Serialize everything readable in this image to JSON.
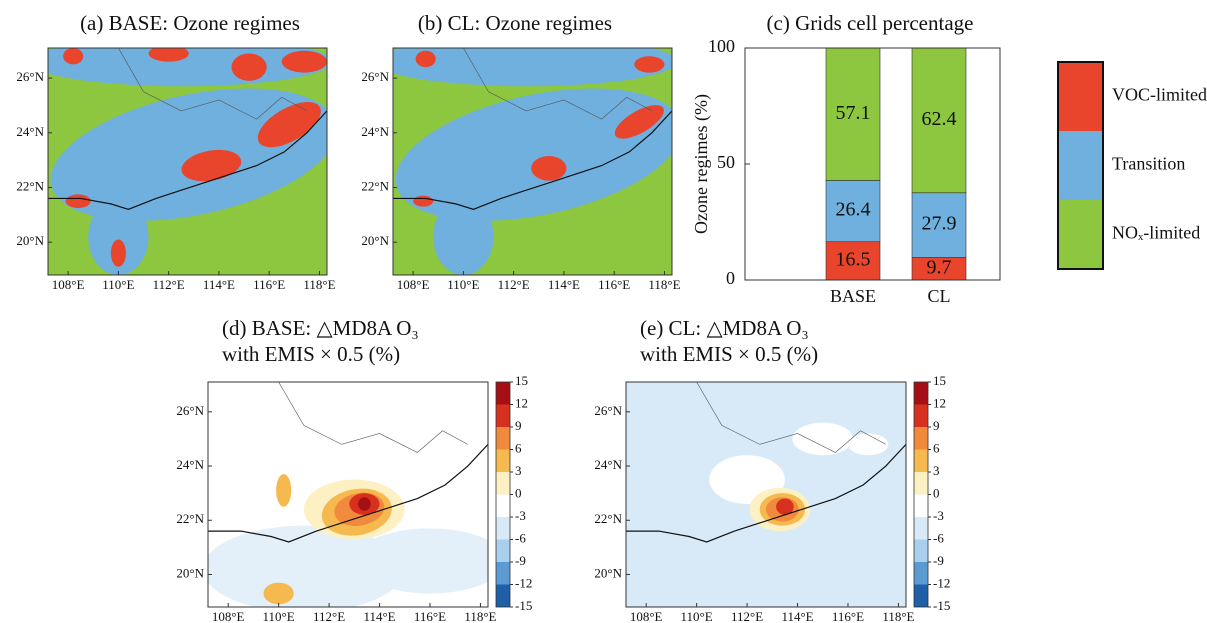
{
  "chart_data": [
    {
      "type": "map",
      "title": "(a) BASE: Ozone regimes",
      "xlim": [
        107.2,
        118.3
      ],
      "ylim": [
        18.8,
        27.1
      ],
      "xticks": [
        {
          "value": 108,
          "label": "108°E"
        },
        {
          "value": 110,
          "label": "110°E"
        },
        {
          "value": 112,
          "label": "112°E"
        },
        {
          "value": 114,
          "label": "114°E"
        },
        {
          "value": 116,
          "label": "116°E"
        },
        {
          "value": 118,
          "label": "118°E"
        }
      ],
      "yticks": [
        {
          "value": 20,
          "label": "20°N"
        },
        {
          "value": 22,
          "label": "22°N"
        },
        {
          "value": 24,
          "label": "24°N"
        },
        {
          "value": 26,
          "label": "26°N"
        }
      ]
    },
    {
      "type": "map",
      "title": "(b) CL: Ozone regimes",
      "xlim": [
        107.2,
        118.3
      ],
      "ylim": [
        18.8,
        27.1
      ],
      "xticks": [
        {
          "value": 108,
          "label": "108°E"
        },
        {
          "value": 110,
          "label": "110°E"
        },
        {
          "value": 112,
          "label": "112°E"
        },
        {
          "value": 114,
          "label": "114°E"
        },
        {
          "value": 116,
          "label": "116°E"
        },
        {
          "value": 118,
          "label": "118°E"
        }
      ],
      "yticks": [
        {
          "value": 20,
          "label": "20°N"
        },
        {
          "value": 22,
          "label": "22°N"
        },
        {
          "value": 24,
          "label": "24°N"
        },
        {
          "value": 26,
          "label": "26°N"
        }
      ]
    },
    {
      "type": "bar",
      "title": "(c) Grids cell percentage",
      "y_label": "Ozone regimes (%)",
      "categories": [
        "BASE",
        "CL"
      ],
      "ylim": [
        0,
        100
      ],
      "yticks": [
        0,
        50,
        100
      ],
      "series": [
        {
          "name": "VOC-limited",
          "color": "#e8452c",
          "values": [
            16.5,
            9.7
          ]
        },
        {
          "name": "Transition",
          "color": "#6fb0de",
          "values": [
            26.4,
            27.9
          ]
        },
        {
          "name": "NOₓ-limited",
          "color": "#8dc63f",
          "values": [
            57.1,
            62.4
          ]
        }
      ]
    },
    {
      "type": "map",
      "title": [
        "(d) BASE: △MD8A O₃",
        "with EMIS × 0.5 (%)"
      ],
      "xlim": [
        107.2,
        118.3
      ],
      "ylim": [
        18.8,
        27.1
      ],
      "xticks": [
        {
          "value": 108,
          "label": "108°E"
        },
        {
          "value": 110,
          "label": "110°E"
        },
        {
          "value": 112,
          "label": "112°E"
        },
        {
          "value": 114,
          "label": "114°E"
        },
        {
          "value": 116,
          "label": "116°E"
        },
        {
          "value": 118,
          "label": "118°E"
        }
      ],
      "yticks": [
        {
          "value": 20,
          "label": "20°N"
        },
        {
          "value": 22,
          "label": "22°N"
        },
        {
          "value": 24,
          "label": "24°N"
        },
        {
          "value": 26,
          "label": "26°N"
        }
      ],
      "colorbar": {
        "ticks": [
          15,
          12,
          9,
          6,
          3,
          0,
          -3,
          -6,
          -9,
          -12,
          -15
        ],
        "colors": [
          "#a50f15",
          "#d7301f",
          "#f08a3c",
          "#f6b94f",
          "#fdf0c2",
          "#ffffff",
          "#d8eaf7",
          "#a9cfec",
          "#5b9bd2",
          "#1f5fa8"
        ]
      }
    },
    {
      "type": "map",
      "title": [
        "(e) CL: △MD8A O₃",
        "with EMIS × 0.5 (%)"
      ],
      "xlim": [
        107.2,
        118.3
      ],
      "ylim": [
        18.8,
        27.1
      ],
      "xticks": [
        {
          "value": 108,
          "label": "108°E"
        },
        {
          "value": 110,
          "label": "110°E"
        },
        {
          "value": 112,
          "label": "112°E"
        },
        {
          "value": 114,
          "label": "114°E"
        },
        {
          "value": 116,
          "label": "116°E"
        },
        {
          "value": 118,
          "label": "118°E"
        }
      ],
      "yticks": [
        {
          "value": 20,
          "label": "20°N"
        },
        {
          "value": 22,
          "label": "22°N"
        },
        {
          "value": 24,
          "label": "24°N"
        },
        {
          "value": 26,
          "label": "26°N"
        }
      ],
      "colorbar": {
        "ticks": [
          15,
          12,
          9,
          6,
          3,
          0,
          -3,
          -6,
          -9,
          -12,
          -15
        ],
        "colors": [
          "#a50f15",
          "#d7301f",
          "#f08a3c",
          "#f6b94f",
          "#fdf0c2",
          "#ffffff",
          "#d8eaf7",
          "#a9cfec",
          "#5b9bd2",
          "#1f5fa8"
        ]
      }
    }
  ]
}
